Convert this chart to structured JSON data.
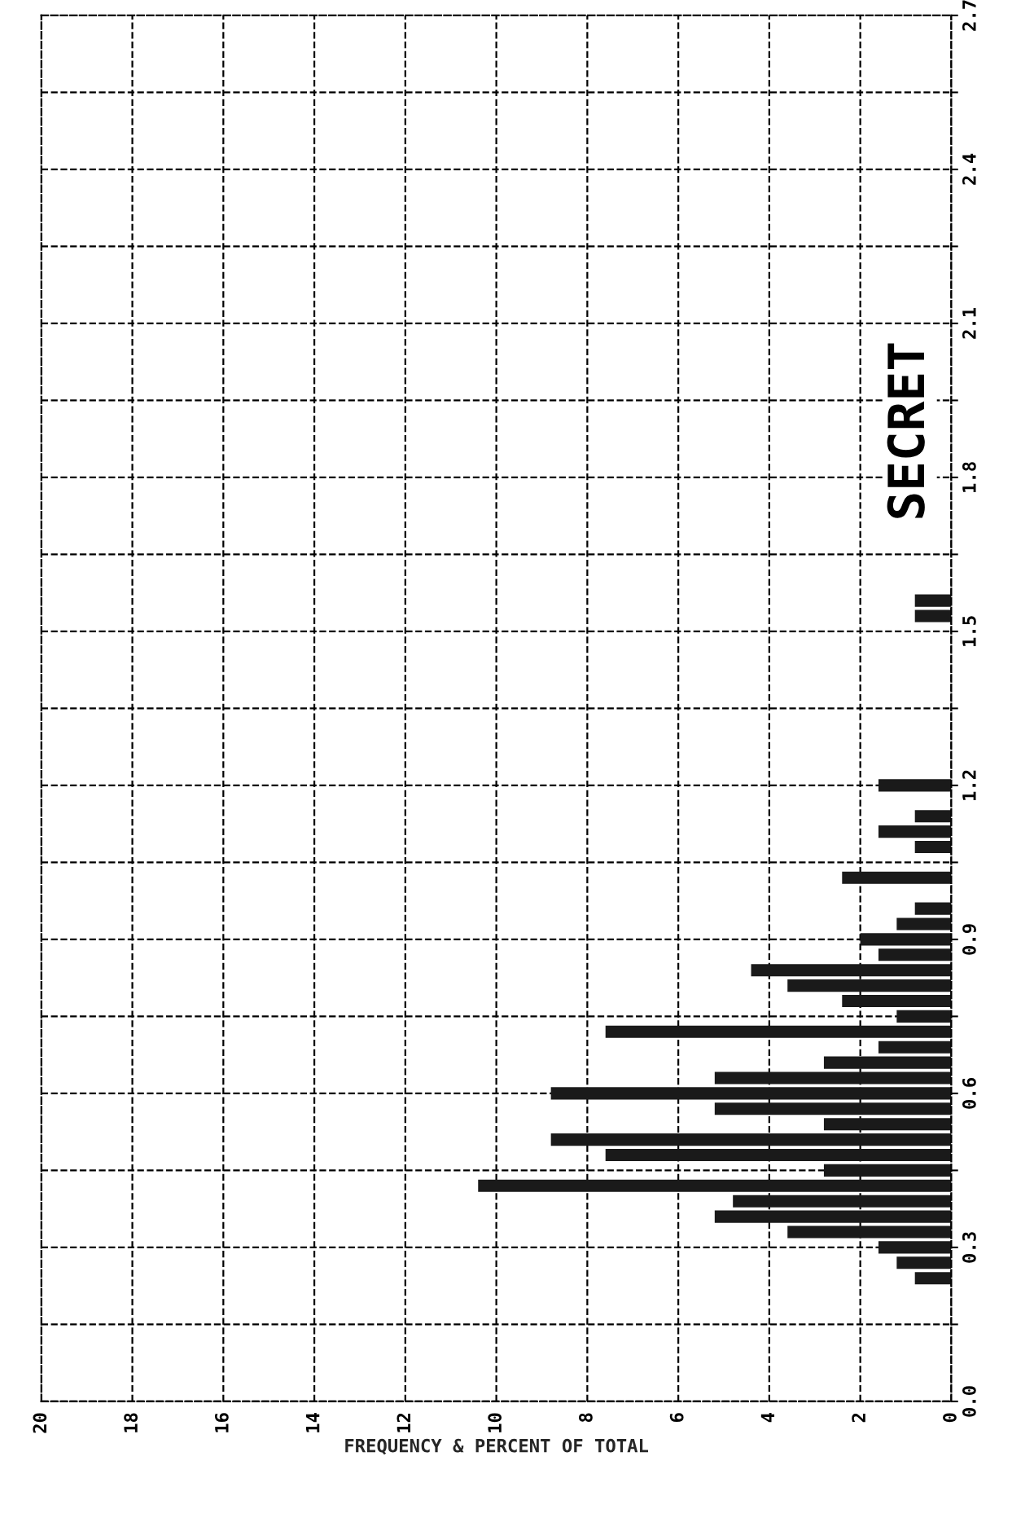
{
  "chart_data": {
    "type": "histogram",
    "orientation": "horizontal",
    "xlabel": "FREQUENCY & PERCENT OF TOTAL",
    "annotations": [
      "SECRET"
    ],
    "bins": [
      0.225,
      0.255,
      0.285,
      0.315,
      0.345,
      0.375,
      0.405,
      0.435,
      0.465,
      0.495,
      0.525,
      0.555,
      0.585,
      0.615,
      0.645,
      0.675,
      0.705,
      0.735,
      0.765,
      0.795,
      0.825,
      0.855,
      0.885,
      0.915,
      0.945,
      0.975,
      1.005,
      1.035,
      1.065,
      1.095,
      1.125,
      1.155,
      1.185,
      1.215,
      1.245,
      1.275,
      1.305,
      1.335,
      1.365,
      1.395,
      1.425,
      1.455,
      1.485,
      1.515,
      1.545,
      1.575
    ],
    "values": [
      0.8,
      1.2,
      1.6,
      3.6,
      5.2,
      4.8,
      10.4,
      2.8,
      7.6,
      8.8,
      2.8,
      5.2,
      8.8,
      5.2,
      2.8,
      1.6,
      7.6,
      1.2,
      2.4,
      3.6,
      4.4,
      1.6,
      2.0,
      1.2,
      0.8,
      0,
      2.4,
      0,
      0.8,
      1.6,
      0.8,
      0,
      1.6,
      0,
      0,
      0,
      0,
      0,
      0,
      0,
      0,
      0,
      0,
      0.8,
      0.8
    ],
    "color": "#1a1a1a",
    "xlim": [
      20,
      0
    ],
    "xticks": [
      0,
      2,
      4,
      6,
      8,
      10,
      12,
      14,
      16,
      18,
      20
    ],
    "ylim": [
      0,
      2.7
    ],
    "yticks": [
      {
        "value": 0,
        "label": "0.0"
      },
      {
        "value": 0.15,
        "label": null
      },
      0.3,
      {
        "value": 0.45,
        "label": null
      },
      0.6,
      {
        "value": 0.75,
        "label": null
      },
      0.9,
      {
        "value": 1.05,
        "label": null
      },
      1.2,
      {
        "value": 1.35,
        "label": null
      },
      1.5,
      {
        "value": 1.65,
        "label": null
      },
      1.8,
      {
        "value": 1.95,
        "label": null
      },
      2.1,
      {
        "value": 2.25,
        "label": null
      },
      2.4,
      {
        "value": 2.55,
        "label": null
      },
      2.7
    ],
    "grid": true,
    "line_style": "dashed"
  }
}
